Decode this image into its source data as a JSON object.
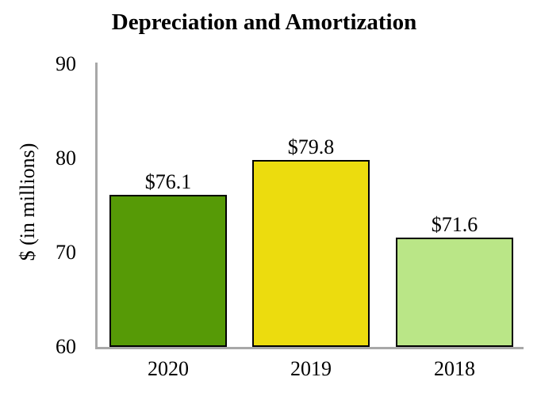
{
  "chart_data": {
    "type": "bar",
    "title": "Depreciation and Amortization",
    "xlabel": "",
    "ylabel": "$ (in millions)",
    "ylim": [
      60,
      90
    ],
    "ytick_interval": 10,
    "yticks": [
      "90",
      "80",
      "70",
      "60"
    ],
    "ytick_values": [
      90,
      80,
      70,
      60
    ],
    "categories": [
      "2020",
      "2019",
      "2018"
    ],
    "values": [
      76.1,
      79.8,
      71.6
    ],
    "value_labels": [
      "$76.1",
      "$79.8",
      "$71.6"
    ],
    "bar_colors": [
      "#569a06",
      "#ecdc0e",
      "#bae687"
    ],
    "bar_border_color": "#000000",
    "axis_color": "#a8a8a8",
    "background_color": "#ffffff",
    "grid": false,
    "legend": false
  }
}
